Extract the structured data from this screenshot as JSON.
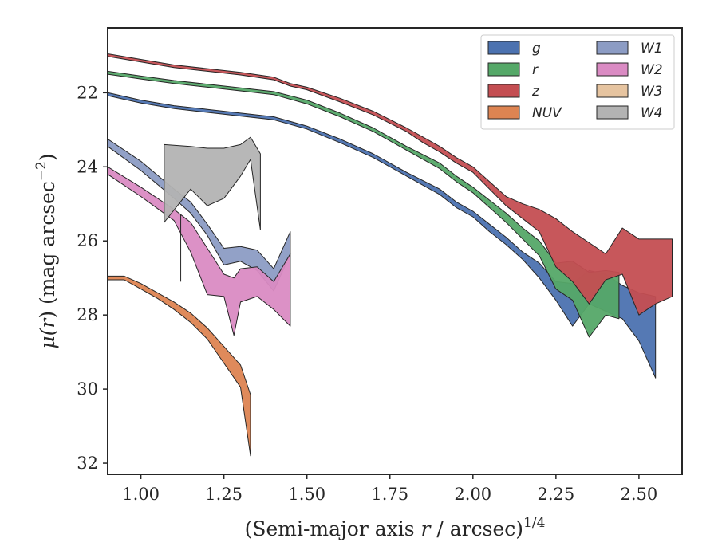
{
  "chart_data": {
    "type": "area",
    "xlim": [
      0.9,
      2.63
    ],
    "ylim": [
      32.3,
      20.25
    ],
    "y_inverted": true,
    "x_ticks": [
      1.0,
      1.25,
      1.5,
      1.75,
      2.0,
      2.25,
      2.5
    ],
    "x_tick_labels": [
      "1.00",
      "1.25",
      "1.50",
      "1.75",
      "2.00",
      "2.25",
      "2.50"
    ],
    "y_ticks": [
      22,
      24,
      26,
      28,
      30,
      32
    ],
    "y_tick_labels": [
      "22",
      "24",
      "26",
      "28",
      "30",
      "32"
    ],
    "xlabel": {
      "prefix": "(Semi-major axis ",
      "var": "r",
      "suffix": " / arcsec)",
      "sup": "1/4"
    },
    "ylabel": {
      "mu": "μ(",
      "var": "r",
      "suffix": ") (mag arcsec",
      "sup": "−2",
      "close": ")"
    },
    "grid": false,
    "legend": {
      "placement": "upper-right",
      "columns": 2
    },
    "series": [
      {
        "name": "g",
        "color": "#4c72b0",
        "x": [
          0.9,
          1.0,
          1.1,
          1.2,
          1.3,
          1.4,
          1.5,
          1.6,
          1.7,
          1.8,
          1.9,
          1.95,
          2.0,
          2.05,
          2.1,
          2.15,
          2.2,
          2.25,
          2.3,
          2.35,
          2.4,
          2.45,
          2.5,
          2.55
        ],
        "lower": [
          22.0,
          22.2,
          22.35,
          22.45,
          22.55,
          22.65,
          22.9,
          23.25,
          23.65,
          24.15,
          24.6,
          24.95,
          25.2,
          25.55,
          25.9,
          26.3,
          26.6,
          27.1,
          27.15,
          26.8,
          26.9,
          27.2,
          27.4,
          27.5
        ],
        "upper": [
          22.08,
          22.28,
          22.43,
          22.53,
          22.63,
          22.73,
          22.98,
          23.35,
          23.75,
          24.25,
          24.75,
          25.1,
          25.35,
          25.75,
          26.1,
          26.5,
          27.0,
          27.6,
          28.3,
          27.7,
          27.9,
          28.1,
          28.7,
          29.7
        ]
      },
      {
        "name": "r",
        "color": "#55a868",
        "x": [
          0.9,
          1.0,
          1.1,
          1.2,
          1.3,
          1.4,
          1.5,
          1.6,
          1.7,
          1.8,
          1.9,
          1.95,
          2.0,
          2.05,
          2.1,
          2.15,
          2.2,
          2.25,
          2.3,
          2.35,
          2.4,
          2.44
        ],
        "lower": [
          21.42,
          21.55,
          21.67,
          21.77,
          21.87,
          21.97,
          22.2,
          22.55,
          22.95,
          23.45,
          23.9,
          24.25,
          24.55,
          24.9,
          25.25,
          25.65,
          26.0,
          26.6,
          26.55,
          26.85,
          26.8,
          26.85
        ],
        "upper": [
          21.5,
          21.63,
          21.75,
          21.85,
          21.95,
          22.05,
          22.3,
          22.65,
          23.05,
          23.55,
          24.05,
          24.4,
          24.7,
          25.1,
          25.5,
          25.95,
          26.4,
          27.3,
          27.6,
          28.6,
          28.0,
          28.1
        ]
      },
      {
        "name": "z",
        "color": "#c44e52",
        "x": [
          0.9,
          1.0,
          1.1,
          1.2,
          1.3,
          1.4,
          1.45,
          1.5,
          1.6,
          1.7,
          1.8,
          1.85,
          1.9,
          1.95,
          2.0,
          2.05,
          2.1,
          2.15,
          2.2,
          2.25,
          2.3,
          2.35,
          2.4,
          2.45,
          2.5,
          2.55,
          2.6
        ],
        "lower": [
          20.95,
          21.1,
          21.25,
          21.35,
          21.45,
          21.58,
          21.75,
          21.85,
          22.15,
          22.5,
          22.95,
          23.2,
          23.45,
          23.75,
          24.0,
          24.4,
          24.8,
          25.0,
          25.15,
          25.4,
          25.75,
          26.05,
          26.35,
          25.65,
          25.95,
          25.95,
          25.95
        ],
        "upper": [
          21.02,
          21.17,
          21.32,
          21.42,
          21.52,
          21.65,
          21.82,
          21.92,
          22.25,
          22.6,
          23.05,
          23.35,
          23.6,
          23.9,
          24.15,
          24.6,
          25.05,
          25.4,
          25.75,
          26.7,
          27.1,
          27.7,
          27.05,
          26.9,
          28.0,
          27.7,
          27.5
        ]
      },
      {
        "name": "NUV",
        "color": "#dd8452",
        "x": [
          0.9,
          0.95,
          1.0,
          1.05,
          1.1,
          1.15,
          1.2,
          1.25,
          1.3,
          1.33
        ],
        "lower": [
          26.95,
          26.95,
          27.15,
          27.4,
          27.65,
          27.95,
          28.35,
          28.85,
          29.35,
          30.15
        ],
        "upper": [
          27.05,
          27.05,
          27.3,
          27.55,
          27.85,
          28.2,
          28.65,
          29.3,
          29.95,
          31.8
        ]
      },
      {
        "name": "W1",
        "color": "#8c9cc4",
        "x": [
          0.9,
          1.0,
          1.1,
          1.15,
          1.2,
          1.25,
          1.3,
          1.35,
          1.4,
          1.45
        ],
        "lower": [
          23.25,
          23.85,
          24.6,
          24.95,
          25.55,
          26.2,
          26.15,
          26.25,
          26.75,
          25.75
        ],
        "upper": [
          23.45,
          24.1,
          24.85,
          25.25,
          25.85,
          26.65,
          26.55,
          26.8,
          27.35,
          26.35
        ]
      },
      {
        "name": "W2",
        "color": "#da8bc3",
        "x": [
          0.9,
          1.0,
          1.1,
          1.15,
          1.2,
          1.25,
          1.28,
          1.3,
          1.35,
          1.4,
          1.45
        ],
        "lower": [
          24.0,
          24.55,
          25.15,
          25.5,
          26.2,
          26.9,
          27.0,
          26.75,
          26.7,
          27.1,
          26.35
        ],
        "upper": [
          24.2,
          24.8,
          25.45,
          26.3,
          27.45,
          27.5,
          28.55,
          27.65,
          27.5,
          27.85,
          28.3
        ]
      },
      {
        "name": "W3",
        "color": "#e6c4a0",
        "x": [],
        "lower": [],
        "upper": []
      },
      {
        "name": "W4",
        "color": "#b3b3b3",
        "x": [
          1.07,
          1.15,
          1.2,
          1.25,
          1.3,
          1.33,
          1.36
        ],
        "lower": [
          23.4,
          23.45,
          23.5,
          23.5,
          23.4,
          23.2,
          23.65
        ],
        "upper": [
          25.5,
          24.6,
          25.05,
          24.85,
          24.25,
          23.8,
          25.7
        ]
      }
    ],
    "segments": [
      {
        "series": "W4",
        "x": 1.12,
        "y1": 25.3,
        "y2": 27.1
      }
    ]
  }
}
